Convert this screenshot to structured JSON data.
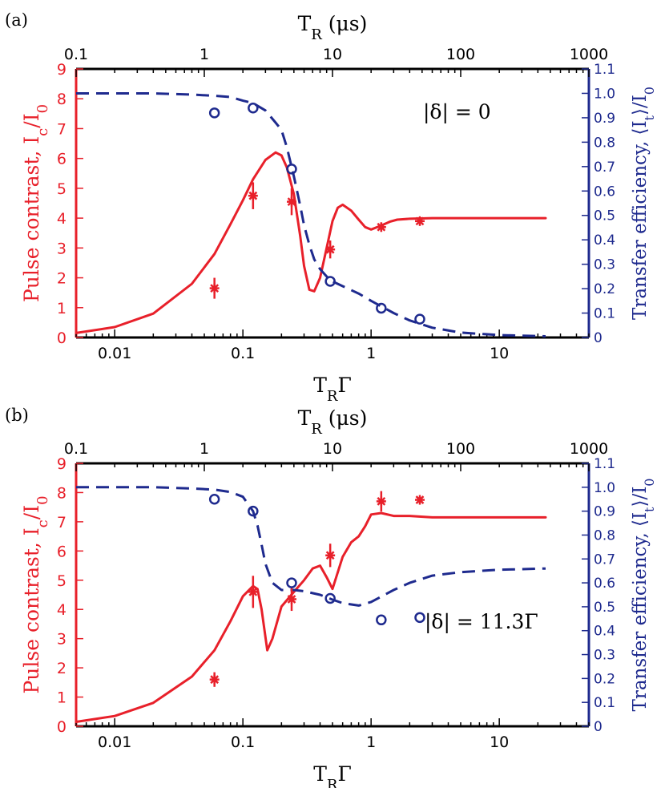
{
  "colors": {
    "left_axis": "#e8202a",
    "right_axis": "#1e2a8e",
    "frame": "#000000"
  },
  "chart_data": [
    {
      "type": "line",
      "panel_label": "(a)",
      "annotation": "|δ| = 0",
      "top_axis": {
        "label": "T_R (μs)",
        "scale": "log",
        "range": [
          0.1,
          1000
        ],
        "ticks": [
          0.1,
          1,
          10,
          100,
          1000
        ],
        "tick_labels": [
          "0.1",
          "1",
          "10",
          "100",
          "1000"
        ]
      },
      "x_axis": {
        "label": "T_RΓ",
        "scale": "log",
        "range": [
          0.005,
          50
        ],
        "ticks": [
          0.01,
          0.1,
          1,
          10
        ],
        "tick_labels": [
          "0.01",
          "0.1",
          "1",
          "10"
        ]
      },
      "y_left": {
        "label": "Pulse contrast, I_c/I_0",
        "range": [
          0,
          9
        ],
        "ticks": [
          0,
          1,
          2,
          3,
          4,
          5,
          6,
          7,
          8,
          9
        ],
        "tick_labels": [
          "0",
          "1",
          "2",
          "3",
          "4",
          "5",
          "6",
          "7",
          "8",
          "9"
        ]
      },
      "y_right": {
        "label": "Transfer efficiency, ⟨I_t⟩/I_0",
        "range": [
          0,
          1.1
        ],
        "ticks": [
          0,
          0.1,
          0.2,
          0.3,
          0.4,
          0.5,
          0.6,
          0.7,
          0.8,
          0.9,
          1.0,
          1.1
        ],
        "tick_labels": [
          "0",
          "0.1",
          "0.2",
          "0.3",
          "0.4",
          "0.5",
          "0.6",
          "0.7",
          "0.8",
          "0.9",
          "1.0",
          "1.1"
        ]
      },
      "series": [
        {
          "style": "solid",
          "color": "#e8202a",
          "axis": "left",
          "x": [
            0.005,
            0.01,
            0.02,
            0.04,
            0.06,
            0.08,
            0.1,
            0.12,
            0.15,
            0.18,
            0.2,
            0.22,
            0.25,
            0.28,
            0.3,
            0.33,
            0.36,
            0.4,
            0.45,
            0.5,
            0.55,
            0.6,
            0.7,
            0.8,
            0.9,
            1.0,
            1.2,
            1.4,
            1.6,
            2,
            3,
            5,
            10,
            23
          ],
          "y": [
            0.15,
            0.35,
            0.8,
            1.8,
            2.8,
            3.8,
            4.6,
            5.3,
            5.95,
            6.2,
            6.1,
            5.7,
            4.8,
            3.4,
            2.4,
            1.6,
            1.55,
            2.0,
            3.0,
            3.9,
            4.35,
            4.45,
            4.25,
            3.95,
            3.7,
            3.62,
            3.75,
            3.88,
            3.95,
            3.98,
            4.0,
            4.0,
            4.0,
            4.0
          ]
        },
        {
          "style": "dashed",
          "color": "#1e2a8e",
          "axis": "right",
          "x": [
            0.005,
            0.01,
            0.02,
            0.04,
            0.06,
            0.08,
            0.1,
            0.12,
            0.15,
            0.18,
            0.2,
            0.22,
            0.25,
            0.28,
            0.3,
            0.33,
            0.36,
            0.4,
            0.45,
            0.5,
            0.6,
            0.8,
            1.0,
            1.5,
            2,
            3,
            5,
            10,
            23
          ],
          "y": [
            1.0,
            1.0,
            1.0,
            0.995,
            0.99,
            0.985,
            0.97,
            0.96,
            0.93,
            0.88,
            0.85,
            0.78,
            0.66,
            0.54,
            0.46,
            0.38,
            0.32,
            0.28,
            0.25,
            0.23,
            0.21,
            0.18,
            0.15,
            0.1,
            0.07,
            0.04,
            0.02,
            0.01,
            0.005
          ]
        }
      ],
      "points": {
        "pulse_contrast": {
          "marker": "asterisk",
          "x": [
            0.06,
            0.12,
            0.24,
            0.48,
            1.2,
            2.4
          ],
          "y": [
            1.65,
            4.75,
            4.55,
            2.95,
            3.7,
            3.9
          ],
          "err": [
            0.35,
            0.45,
            0.45,
            0.3,
            0.15,
            0.1
          ]
        },
        "transfer_efficiency": {
          "marker": "circle",
          "x": [
            0.06,
            0.12,
            0.24,
            0.48,
            1.2,
            2.4
          ],
          "y": [
            0.92,
            0.94,
            0.69,
            0.23,
            0.12,
            0.075
          ]
        }
      }
    },
    {
      "type": "line",
      "panel_label": "(b)",
      "annotation": "|δ| = 11.3Γ",
      "top_axis": {
        "label": "T_R (μs)",
        "scale": "log",
        "range": [
          0.1,
          1000
        ],
        "ticks": [
          0.1,
          1,
          10,
          100,
          1000
        ],
        "tick_labels": [
          "0.1",
          "1",
          "10",
          "100",
          "1000"
        ]
      },
      "x_axis": {
        "label": "T_RΓ",
        "scale": "log",
        "range": [
          0.005,
          50
        ],
        "ticks": [
          0.01,
          0.1,
          1,
          10
        ],
        "tick_labels": [
          "0.01",
          "0.1",
          "1",
          "10"
        ]
      },
      "y_left": {
        "label": "Pulse contrast, I_c/I_0",
        "range": [
          0,
          9
        ],
        "ticks": [
          0,
          1,
          2,
          3,
          4,
          5,
          6,
          7,
          8,
          9
        ],
        "tick_labels": [
          "0",
          "1",
          "2",
          "3",
          "4",
          "5",
          "6",
          "7",
          "8",
          "9"
        ]
      },
      "y_right": {
        "label": "Transfer efficiency, ⟨I_t⟩/I_0",
        "range": [
          0,
          1.1
        ],
        "ticks": [
          0,
          0.1,
          0.2,
          0.3,
          0.4,
          0.5,
          0.6,
          0.7,
          0.8,
          0.9,
          1.0,
          1.1
        ],
        "tick_labels": [
          "0",
          "0.1",
          "0.2",
          "0.3",
          "0.4",
          "0.5",
          "0.6",
          "0.7",
          "0.8",
          "0.9",
          "1.0",
          "1.1"
        ]
      },
      "series": [
        {
          "style": "solid",
          "color": "#e8202a",
          "axis": "left",
          "x": [
            0.005,
            0.01,
            0.02,
            0.04,
            0.06,
            0.08,
            0.1,
            0.12,
            0.13,
            0.14,
            0.155,
            0.17,
            0.2,
            0.25,
            0.3,
            0.35,
            0.4,
            0.45,
            0.5,
            0.6,
            0.7,
            0.8,
            0.9,
            1.0,
            1.2,
            1.5,
            2,
            3,
            5,
            10,
            23
          ],
          "y": [
            0.15,
            0.35,
            0.8,
            1.7,
            2.6,
            3.6,
            4.45,
            4.8,
            4.7,
            4.0,
            2.6,
            3.0,
            4.1,
            4.6,
            5.0,
            5.4,
            5.5,
            5.1,
            4.7,
            5.8,
            6.3,
            6.5,
            6.85,
            7.25,
            7.3,
            7.2,
            7.2,
            7.15,
            7.15,
            7.15,
            7.15
          ]
        },
        {
          "style": "dashed",
          "color": "#1e2a8e",
          "axis": "right",
          "x": [
            0.005,
            0.01,
            0.02,
            0.04,
            0.06,
            0.08,
            0.1,
            0.12,
            0.13,
            0.14,
            0.15,
            0.17,
            0.2,
            0.25,
            0.3,
            0.4,
            0.5,
            0.6,
            0.8,
            1.0,
            1.5,
            2,
            3,
            5,
            10,
            23
          ],
          "y": [
            1.0,
            1.0,
            1.0,
            0.995,
            0.99,
            0.98,
            0.96,
            0.9,
            0.84,
            0.76,
            0.68,
            0.6,
            0.57,
            0.57,
            0.565,
            0.55,
            0.53,
            0.515,
            0.505,
            0.52,
            0.57,
            0.6,
            0.63,
            0.645,
            0.655,
            0.66
          ]
        }
      ],
      "points": {
        "pulse_contrast": {
          "marker": "asterisk",
          "x": [
            0.06,
            0.12,
            0.24,
            0.48,
            1.2,
            2.4
          ],
          "y": [
            1.6,
            4.6,
            4.35,
            5.85,
            7.7,
            7.75
          ],
          "err": [
            0.25,
            0.55,
            0.4,
            0.4,
            0.35,
            0.1
          ]
        },
        "transfer_efficiency": {
          "marker": "circle",
          "x": [
            0.06,
            0.12,
            0.24,
            0.48,
            1.2,
            2.4
          ],
          "y": [
            0.95,
            0.9,
            0.6,
            0.535,
            0.445,
            0.455
          ]
        }
      }
    }
  ]
}
